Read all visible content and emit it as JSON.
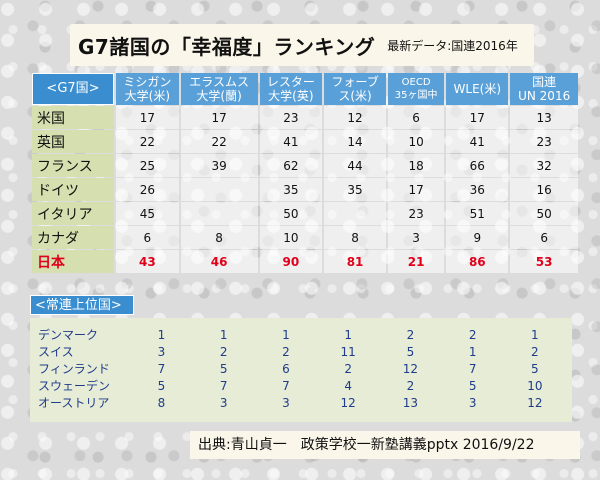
{
  "title": {
    "main": "G7諸国の「幸福度」ランキング",
    "sub": "最新データ:国連2016年"
  },
  "g7_table": {
    "corner_label": "<G7国>",
    "columns": [
      "ミシガン\n大学(米)",
      "エラスムス\n大学(蘭)",
      "レスター\n大学(英)",
      "フォーブ\nス(米)",
      "OECD\n35ヶ国中",
      "WLE(米)",
      "国連\nUN 2016"
    ],
    "rows": [
      {
        "country": "米国",
        "values": [
          "17",
          "17",
          "23",
          "12",
          "6",
          "17",
          "13"
        ]
      },
      {
        "country": "英国",
        "values": [
          "22",
          "22",
          "41",
          "14",
          "10",
          "41",
          "23"
        ]
      },
      {
        "country": "フランス",
        "values": [
          "25",
          "39",
          "62",
          "44",
          "18",
          "66",
          "32"
        ]
      },
      {
        "country": "ドイツ",
        "values": [
          "26",
          "",
          "35",
          "35",
          "17",
          "36",
          "16"
        ]
      },
      {
        "country": "イタリア",
        "values": [
          "45",
          "",
          "50",
          "",
          "23",
          "51",
          "50"
        ]
      },
      {
        "country": "カナダ",
        "values": [
          "6",
          "8",
          "10",
          "8",
          "3",
          "9",
          "6"
        ]
      },
      {
        "country": "日本",
        "values": [
          "43",
          "46",
          "90",
          "81",
          "21",
          "86",
          "53"
        ],
        "highlight": true
      }
    ]
  },
  "top_section": {
    "label": "<常連上位国>",
    "rows": [
      {
        "country": "デンマーク",
        "values": [
          "1",
          "1",
          "1",
          "1",
          "2",
          "2",
          "1"
        ]
      },
      {
        "country": "スイス",
        "values": [
          "3",
          "2",
          "2",
          "11",
          "5",
          "1",
          "2"
        ]
      },
      {
        "country": "フィンランド",
        "values": [
          "7",
          "5",
          "6",
          "2",
          "12",
          "7",
          "5"
        ]
      },
      {
        "country": "スウェーデン",
        "values": [
          "5",
          "7",
          "7",
          "4",
          "2",
          "5",
          "10"
        ]
      },
      {
        "country": "オーストリア",
        "values": [
          "8",
          "3",
          "3",
          "12",
          "13",
          "3",
          "12"
        ]
      }
    ]
  },
  "source": "出典:青山貞一　政策学校一新塾講義pptx 2016/9/22",
  "colors": {
    "header_blue": "#5aa0d8",
    "country_green": "#d6dfb0",
    "japan_red": "#e0001a",
    "top_text_blue": "#1f3c8c"
  }
}
